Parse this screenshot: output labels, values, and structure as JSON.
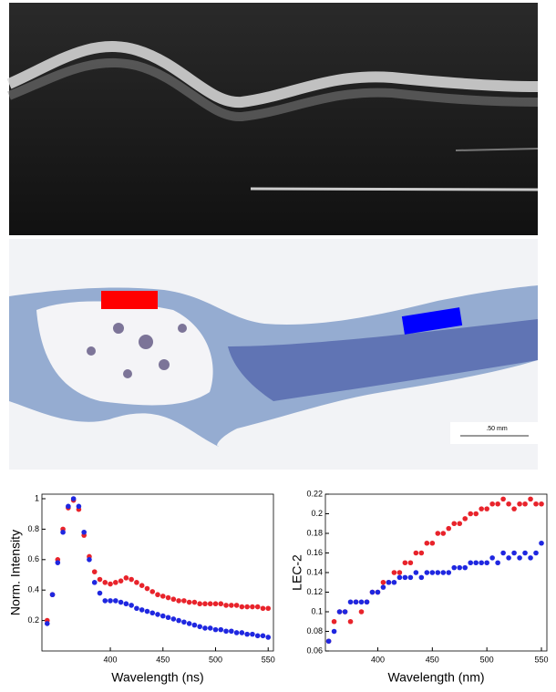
{
  "image_annotations": {
    "scale_bar": ".50 mm"
  },
  "chart_data": [
    {
      "type": "scatter",
      "x_label": "Wavelength (ns)",
      "y_label": "Norm. Intensity",
      "x": [
        340,
        345,
        350,
        355,
        360,
        365,
        370,
        375,
        380,
        385,
        390,
        395,
        400,
        405,
        410,
        415,
        420,
        425,
        430,
        435,
        440,
        445,
        450,
        455,
        460,
        465,
        470,
        475,
        480,
        485,
        490,
        495,
        500,
        505,
        510,
        515,
        520,
        525,
        530,
        535,
        540,
        545,
        550
      ],
      "series": [
        {
          "color": "#e8232b",
          "values": [
            0.2,
            0.37,
            0.6,
            0.8,
            0.94,
            0.99,
            0.93,
            0.76,
            0.62,
            0.52,
            0.47,
            0.45,
            0.44,
            0.45,
            0.46,
            0.48,
            0.47,
            0.45,
            0.43,
            0.41,
            0.39,
            0.37,
            0.36,
            0.35,
            0.34,
            0.33,
            0.33,
            0.32,
            0.32,
            0.31,
            0.31,
            0.31,
            0.31,
            0.31,
            0.3,
            0.3,
            0.3,
            0.29,
            0.29,
            0.29,
            0.29,
            0.28,
            0.28
          ]
        },
        {
          "color": "#1f27e0",
          "values": [
            0.18,
            0.37,
            0.58,
            0.78,
            0.95,
            1.0,
            0.95,
            0.78,
            0.6,
            0.45,
            0.38,
            0.33,
            0.33,
            0.33,
            0.32,
            0.31,
            0.3,
            0.28,
            0.27,
            0.26,
            0.25,
            0.24,
            0.23,
            0.22,
            0.21,
            0.2,
            0.19,
            0.18,
            0.17,
            0.16,
            0.15,
            0.15,
            0.14,
            0.14,
            0.13,
            0.13,
            0.12,
            0.12,
            0.11,
            0.11,
            0.1,
            0.1,
            0.09
          ]
        }
      ],
      "xlim": [
        335,
        555
      ],
      "xticks": [
        400,
        450,
        500,
        550
      ],
      "ylim": [
        0,
        1.03
      ],
      "yticks": [
        0.2,
        0.4,
        0.6,
        0.8,
        1
      ]
    },
    {
      "type": "scatter",
      "x_label": "Wavelength (nm)",
      "y_label": "LEC-2",
      "x": [
        355,
        360,
        365,
        370,
        375,
        380,
        385,
        390,
        395,
        400,
        405,
        410,
        415,
        420,
        425,
        430,
        435,
        440,
        445,
        450,
        455,
        460,
        465,
        470,
        475,
        480,
        485,
        490,
        495,
        500,
        505,
        510,
        515,
        520,
        525,
        530,
        535,
        540,
        545,
        550
      ],
      "series": [
        {
          "color": "#e8232b",
          "values": [
            0.07,
            0.09,
            0.1,
            0.1,
            0.09,
            0.11,
            0.1,
            0.11,
            0.12,
            0.12,
            0.13,
            0.13,
            0.14,
            0.14,
            0.15,
            0.15,
            0.16,
            0.16,
            0.17,
            0.17,
            0.18,
            0.18,
            0.185,
            0.19,
            0.19,
            0.195,
            0.2,
            0.2,
            0.205,
            0.205,
            0.21,
            0.21,
            0.215,
            0.21,
            0.205,
            0.21,
            0.21,
            0.215,
            0.21,
            0.21
          ]
        },
        {
          "color": "#1f27e0",
          "values": [
            0.07,
            0.08,
            0.1,
            0.1,
            0.11,
            0.11,
            0.11,
            0.11,
            0.12,
            0.12,
            0.125,
            0.13,
            0.13,
            0.135,
            0.135,
            0.135,
            0.14,
            0.135,
            0.14,
            0.14,
            0.14,
            0.14,
            0.14,
            0.145,
            0.145,
            0.145,
            0.15,
            0.15,
            0.15,
            0.15,
            0.155,
            0.15,
            0.16,
            0.155,
            0.16,
            0.155,
            0.16,
            0.155,
            0.16,
            0.17
          ]
        }
      ],
      "xlim": [
        352,
        555
      ],
      "xticks": [
        400,
        450,
        500,
        550
      ],
      "ylim": [
        0.06,
        0.22
      ],
      "yticks": [
        0.06,
        0.08,
        0.1,
        0.12,
        0.14,
        0.16,
        0.18,
        0.2,
        0.22
      ]
    }
  ]
}
